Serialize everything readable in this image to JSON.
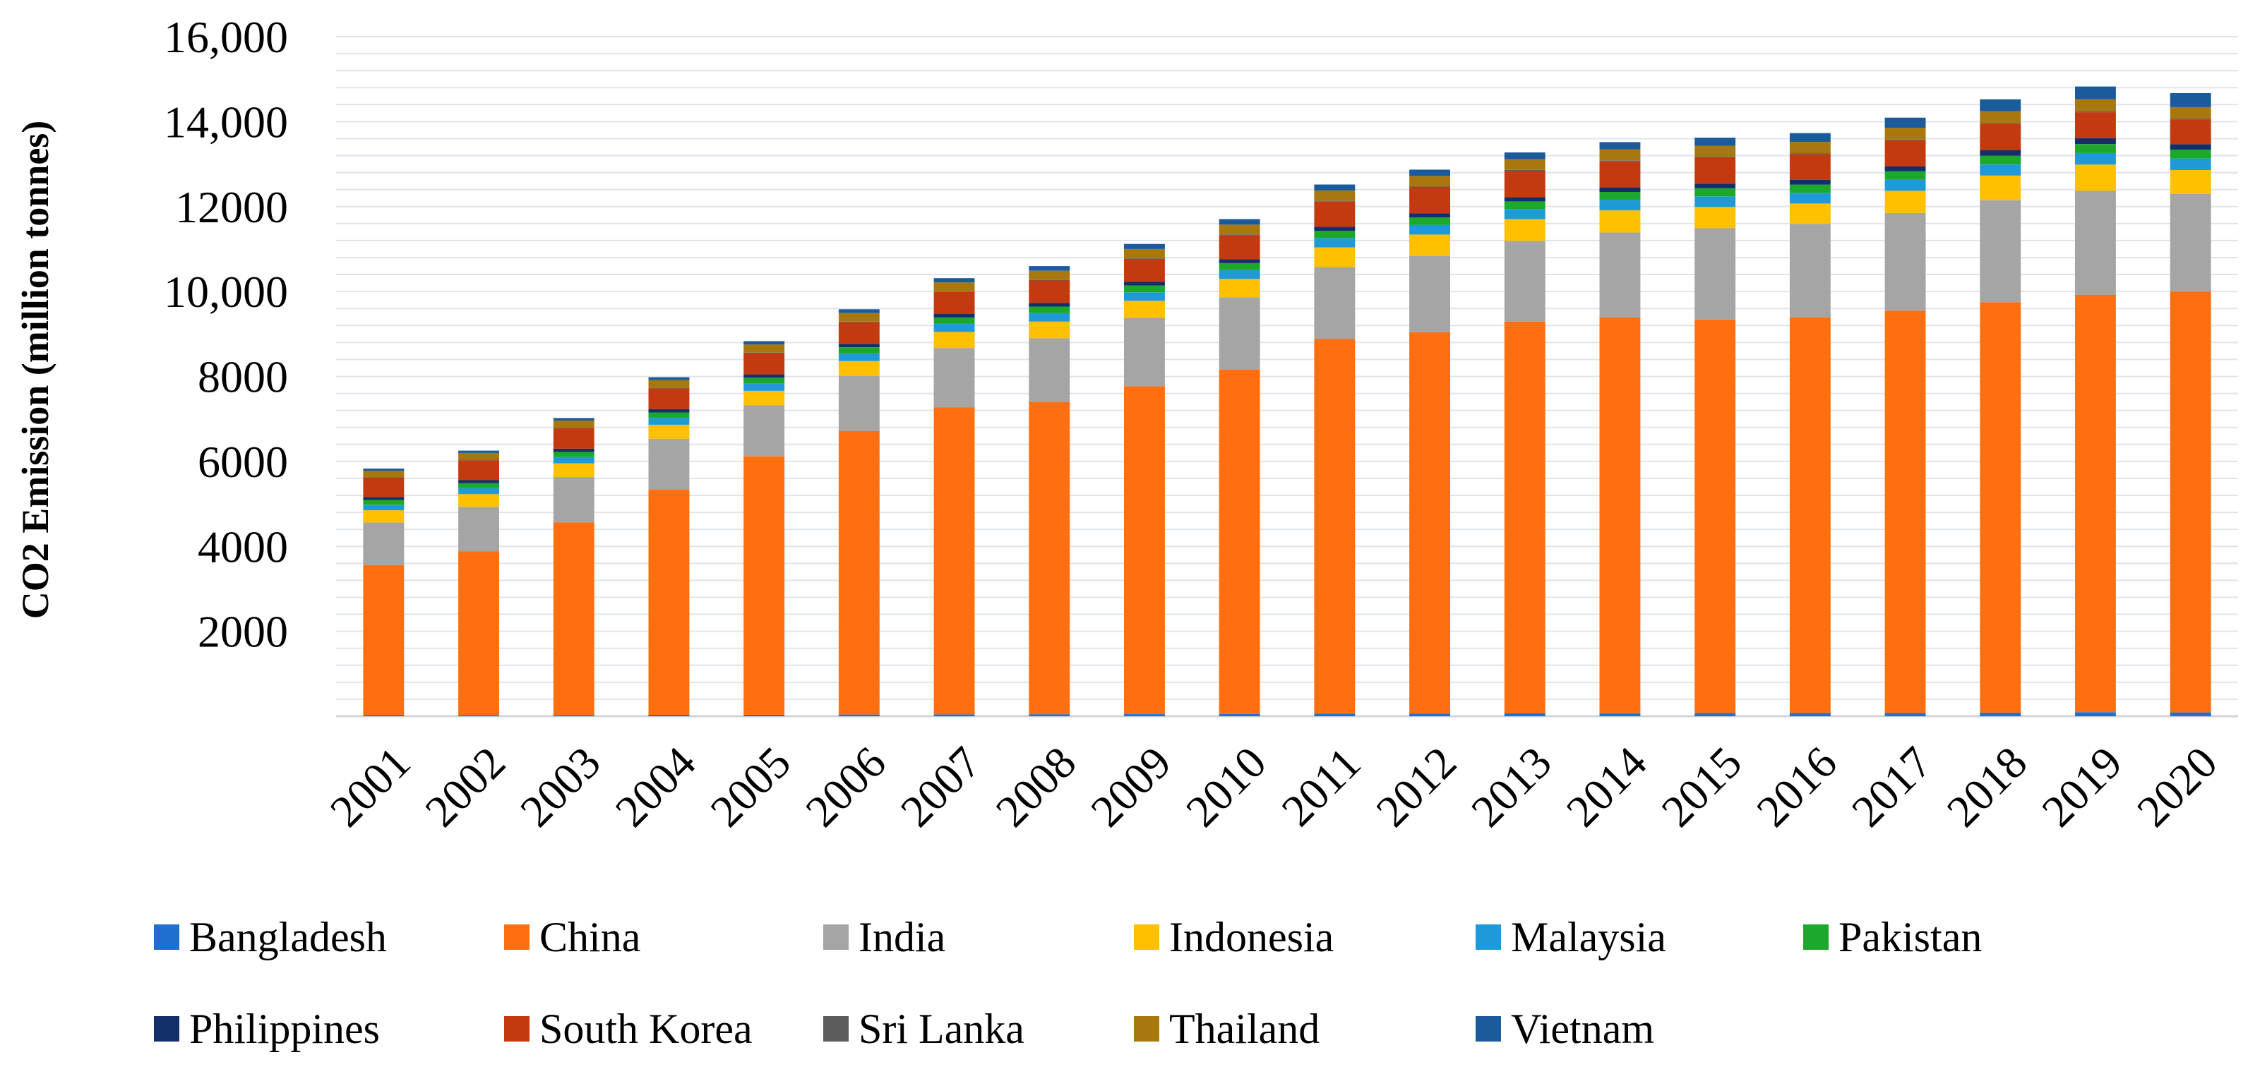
{
  "chart_data": {
    "type": "bar",
    "stacked": true,
    "title": "",
    "xlabel": "",
    "ylabel": "CO2 Emission (million tonnes)",
    "ylim": [
      0,
      16000
    ],
    "yticks": [
      {
        "value": 2000,
        "label": "2000"
      },
      {
        "value": 4000,
        "label": "4000"
      },
      {
        "value": 6000,
        "label": "6000"
      },
      {
        "value": 8000,
        "label": "8000"
      },
      {
        "value": 10000,
        "label": "10,000"
      },
      {
        "value": 12000,
        "label": "12000"
      },
      {
        "value": 14000,
        "label": "14,000"
      },
      {
        "value": 16000,
        "label": "16,000"
      }
    ],
    "grid": true,
    "legend_position": "bottom",
    "categories": [
      "2001",
      "2002",
      "2003",
      "2004",
      "2005",
      "2006",
      "2007",
      "2008",
      "2009",
      "2010",
      "2011",
      "2012",
      "2013",
      "2014",
      "2015",
      "2016",
      "2017",
      "2018",
      "2019",
      "2020"
    ],
    "series": [
      {
        "name": "Bangladesh",
        "color": "#1f6fd1",
        "values": [
          25,
          28,
          30,
          33,
          36,
          40,
          43,
          46,
          49,
          55,
          60,
          63,
          66,
          70,
          75,
          79,
          80,
          85,
          95,
          90
        ]
      },
      {
        "name": "China",
        "color": "#ff6f0f",
        "values": [
          3535,
          3852,
          4535,
          5300,
          6084,
          6672,
          7226,
          7354,
          7721,
          8110,
          8820,
          8977,
          9226,
          9320,
          9265,
          9313,
          9470,
          9665,
          9825,
          9910
        ]
      },
      {
        "name": "India",
        "color": "#a5a5a5",
        "values": [
          1000,
          1050,
          1070,
          1200,
          1200,
          1300,
          1400,
          1500,
          1610,
          1700,
          1700,
          1800,
          1900,
          2000,
          2150,
          2200,
          2300,
          2400,
          2450,
          2300
        ]
      },
      {
        "name": "Indonesia",
        "color": "#ffc000",
        "values": [
          290,
          300,
          320,
          330,
          340,
          350,
          380,
          390,
          400,
          430,
          460,
          500,
          510,
          520,
          500,
          480,
          520,
          580,
          620,
          560
        ]
      },
      {
        "name": "Malaysia",
        "color": "#1e9ad8",
        "values": [
          130,
          140,
          150,
          160,
          170,
          180,
          190,
          200,
          200,
          210,
          220,
          230,
          240,
          250,
          250,
          250,
          260,
          260,
          270,
          270
        ]
      },
      {
        "name": "Pakistan",
        "color": "#1ca82a",
        "values": [
          110,
          115,
          120,
          130,
          140,
          145,
          150,
          155,
          160,
          165,
          170,
          175,
          180,
          185,
          190,
          195,
          200,
          205,
          210,
          210
        ]
      },
      {
        "name": "Philippines",
        "color": "#122f6b",
        "values": [
          70,
          72,
          74,
          76,
          78,
          80,
          82,
          84,
          86,
          90,
          94,
          98,
          102,
          106,
          110,
          115,
          120,
          130,
          140,
          130
        ]
      },
      {
        "name": "South Korea",
        "color": "#c43a10",
        "values": [
          460,
          470,
          480,
          490,
          500,
          510,
          520,
          530,
          540,
          570,
          600,
          610,
          620,
          620,
          610,
          600,
          610,
          620,
          610,
          580
        ]
      },
      {
        "name": "Sri Lanka",
        "color": "#5c5c5c",
        "values": [
          12,
          12,
          13,
          13,
          14,
          14,
          14,
          14,
          14,
          15,
          15,
          16,
          16,
          17,
          18,
          19,
          20,
          21,
          22,
          21
        ]
      },
      {
        "name": "Thailand",
        "color": "#a8780f",
        "values": [
          150,
          160,
          170,
          180,
          190,
          200,
          210,
          215,
          220,
          230,
          240,
          250,
          255,
          260,
          265,
          270,
          275,
          280,
          285,
          270
        ]
      },
      {
        "name": "Vietnam",
        "color": "#1b5b9c",
        "values": [
          50,
          55,
          60,
          70,
          80,
          90,
          100,
          110,
          120,
          130,
          140,
          150,
          160,
          170,
          190,
          210,
          240,
          280,
          300,
          330
        ]
      }
    ]
  }
}
